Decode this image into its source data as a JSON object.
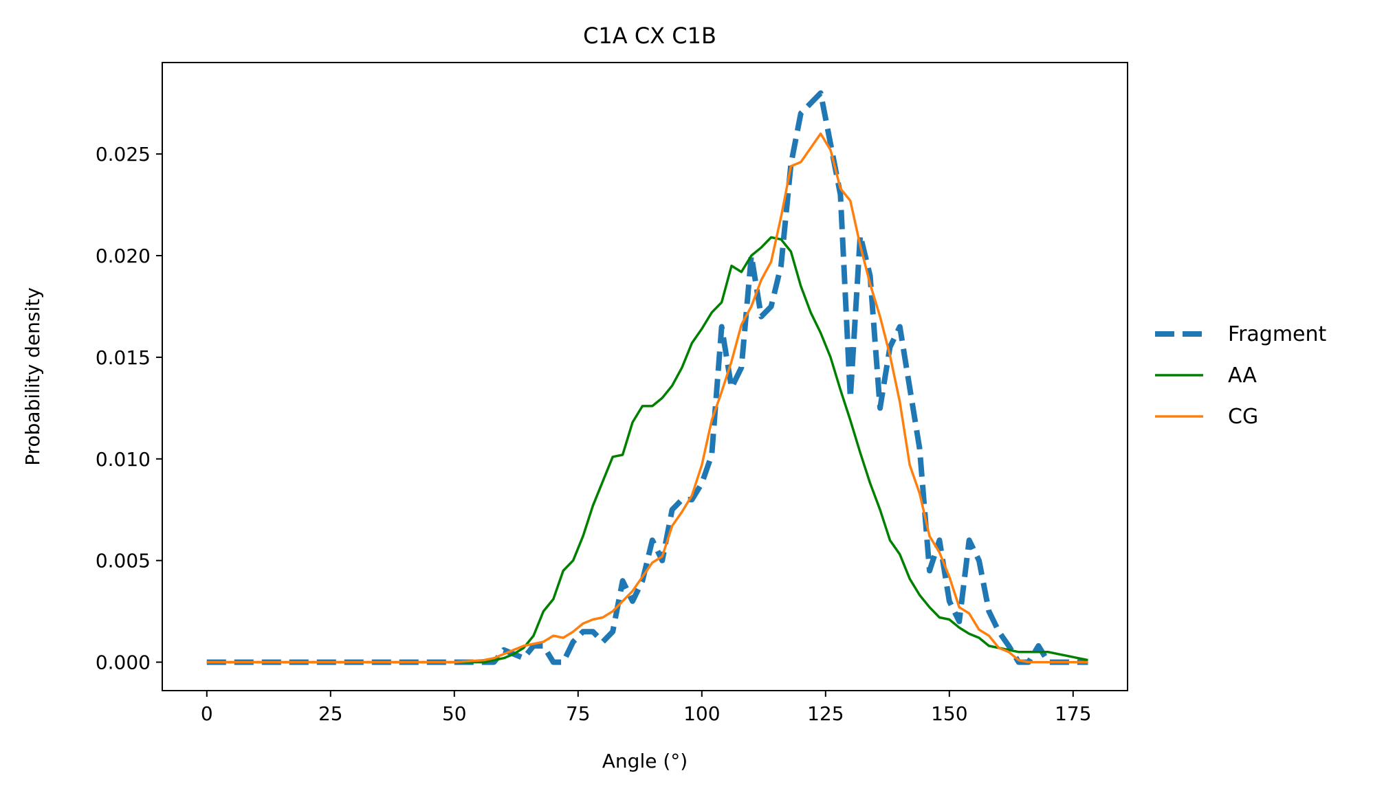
{
  "chart_data": {
    "type": "line",
    "title": "C1A CX C1B",
    "xlabel": "Angle (°)",
    "ylabel": "Probability density",
    "xlim": [
      -9,
      186
    ],
    "ylim": [
      -0.0014,
      0.0295
    ],
    "xticks": [
      0,
      25,
      50,
      75,
      100,
      125,
      150,
      175
    ],
    "xtick_labels": [
      "0",
      "25",
      "50",
      "75",
      "100",
      "125",
      "150",
      "175"
    ],
    "yticks": [
      0.0,
      0.005,
      0.01,
      0.015,
      0.02,
      0.025
    ],
    "ytick_labels": [
      "0.000",
      "0.005",
      "0.010",
      "0.015",
      "0.020",
      "0.025"
    ],
    "grid": false,
    "legend": {
      "placement": "outside-right"
    },
    "series": [
      {
        "name": "Fragment",
        "color": "#1f77b4",
        "style": "dashed",
        "x": [
          0,
          50,
          56,
          58,
          60,
          62,
          64,
          66,
          68,
          70,
          72,
          74,
          76,
          78,
          80,
          82,
          84,
          86,
          88,
          90,
          92,
          94,
          96,
          98,
          100,
          102,
          104,
          106,
          108,
          110,
          112,
          114,
          116,
          118,
          120,
          122,
          124,
          126,
          128,
          130,
          132,
          134,
          136,
          138,
          140,
          142,
          144,
          146,
          148,
          150,
          152,
          154,
          156,
          158,
          160,
          162,
          164,
          166,
          168,
          170,
          172,
          174,
          176,
          178
        ],
        "y": [
          0.0,
          0.0,
          0.0,
          0.0,
          0.0006,
          0.0004,
          0.0002,
          0.0008,
          0.0008,
          0.0,
          0.0,
          0.001,
          0.0015,
          0.0015,
          0.001,
          0.0015,
          0.004,
          0.003,
          0.004,
          0.006,
          0.005,
          0.0075,
          0.008,
          0.008,
          0.0088,
          0.0102,
          0.0165,
          0.0135,
          0.0145,
          0.02,
          0.017,
          0.0175,
          0.0195,
          0.0245,
          0.027,
          0.0275,
          0.028,
          0.0255,
          0.023,
          0.013,
          0.021,
          0.019,
          0.0125,
          0.0155,
          0.0165,
          0.0135,
          0.0105,
          0.0045,
          0.006,
          0.003,
          0.002,
          0.006,
          0.005,
          0.0025,
          0.0015,
          0.0008,
          0.0,
          0.0,
          0.0008,
          0.0,
          0.0,
          0.0,
          0.0,
          0.0
        ]
      },
      {
        "name": "AA",
        "color": "#008000",
        "style": "solid",
        "x": [
          0,
          50,
          56,
          58,
          60,
          62,
          64,
          66,
          68,
          70,
          72,
          74,
          76,
          78,
          80,
          82,
          84,
          86,
          88,
          90,
          92,
          94,
          96,
          98,
          100,
          102,
          104,
          106,
          108,
          110,
          112,
          114,
          116,
          118,
          120,
          122,
          124,
          126,
          128,
          130,
          132,
          134,
          136,
          138,
          140,
          142,
          144,
          146,
          148,
          150,
          152,
          154,
          156,
          158,
          160,
          162,
          164,
          166,
          168,
          170,
          172,
          174,
          176,
          178
        ],
        "y": [
          0.0,
          0.0,
          0.0,
          0.0001,
          0.0002,
          0.0004,
          0.0007,
          0.0013,
          0.0025,
          0.0031,
          0.0045,
          0.005,
          0.0062,
          0.0077,
          0.0089,
          0.0101,
          0.0102,
          0.0118,
          0.0126,
          0.0126,
          0.013,
          0.0136,
          0.0145,
          0.0157,
          0.0164,
          0.0172,
          0.0177,
          0.0195,
          0.0192,
          0.02,
          0.0204,
          0.0209,
          0.0208,
          0.0202,
          0.0185,
          0.0172,
          0.0162,
          0.015,
          0.0134,
          0.0119,
          0.0103,
          0.0088,
          0.0075,
          0.006,
          0.0053,
          0.0041,
          0.0033,
          0.0027,
          0.0022,
          0.0021,
          0.0017,
          0.0014,
          0.0012,
          0.0008,
          0.0007,
          0.0006,
          0.0005,
          0.0005,
          0.0005,
          0.0005,
          0.0004,
          0.0003,
          0.0002,
          0.0001
        ]
      },
      {
        "name": "CG",
        "color": "#ff7f0e",
        "style": "solid",
        "x": [
          0,
          50,
          56,
          58,
          60,
          62,
          64,
          66,
          68,
          70,
          72,
          74,
          76,
          78,
          80,
          82,
          84,
          86,
          88,
          90,
          92,
          94,
          96,
          98,
          100,
          102,
          104,
          106,
          108,
          110,
          112,
          114,
          116,
          118,
          120,
          122,
          124,
          126,
          128,
          130,
          132,
          134,
          136,
          138,
          140,
          142,
          144,
          146,
          148,
          150,
          152,
          154,
          156,
          158,
          160,
          162,
          164,
          166,
          168,
          170,
          172,
          174,
          176,
          178
        ],
        "y": [
          0.0,
          0.0,
          0.0001,
          0.0002,
          0.0004,
          0.0006,
          0.0008,
          0.0009,
          0.001,
          0.0013,
          0.0012,
          0.0015,
          0.0019,
          0.0021,
          0.0022,
          0.0025,
          0.003,
          0.0035,
          0.0042,
          0.0049,
          0.0052,
          0.0067,
          0.0074,
          0.0082,
          0.0097,
          0.0119,
          0.0133,
          0.0148,
          0.0166,
          0.0175,
          0.0188,
          0.0197,
          0.0219,
          0.0244,
          0.0246,
          0.0253,
          0.026,
          0.0252,
          0.0233,
          0.0227,
          0.0205,
          0.0186,
          0.017,
          0.0151,
          0.0128,
          0.0097,
          0.0083,
          0.0062,
          0.0054,
          0.0042,
          0.0027,
          0.0024,
          0.0016,
          0.0013,
          0.0007,
          0.0005,
          0.0001,
          0.0,
          0.0,
          0.0,
          0.0,
          0.0,
          0.0,
          0.0
        ]
      }
    ]
  }
}
